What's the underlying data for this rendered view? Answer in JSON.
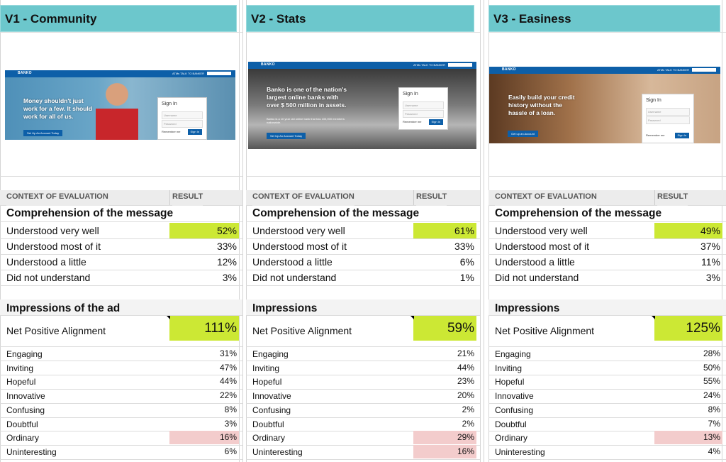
{
  "columns": [
    {
      "header": "V1 - Community",
      "preview": {
        "logo": "BANKO",
        "nav_links": "ATMs  TALK TO BANKER",
        "tagline": [
          "Money shouldn't just",
          "work for a few. It should",
          "work for all of us."
        ],
        "subtext": "",
        "cta": "Set Up An Account Today",
        "signin_title": "Sign In",
        "username_ph": "Username",
        "password_ph": "Password",
        "remember": "Remember me",
        "signin_btn": "Sign In"
      },
      "table_headers": {
        "context": "CONTEXT OF EVALUATION",
        "result": "RESULT"
      },
      "comprehension_title": "Comprehension of the message",
      "comprehension": [
        {
          "label": "Understood very well",
          "value": "52%",
          "highlight": "green"
        },
        {
          "label": "Understood most of it",
          "value": "33%",
          "highlight": ""
        },
        {
          "label": "Understood a little",
          "value": "12%",
          "highlight": ""
        },
        {
          "label": "Did not understand",
          "value": "3%",
          "highlight": ""
        }
      ],
      "impressions_title": "Impressions of the ad",
      "net_label": "Net Positive Alignment",
      "net_value": "111%",
      "impressions": [
        {
          "label": "Engaging",
          "value": "31%",
          "highlight": ""
        },
        {
          "label": "Inviting",
          "value": "47%",
          "highlight": ""
        },
        {
          "label": "Hopeful",
          "value": "44%",
          "highlight": ""
        },
        {
          "label": "Innovative",
          "value": "22%",
          "highlight": ""
        },
        {
          "label": "Confusing",
          "value": "8%",
          "highlight": ""
        },
        {
          "label": "Doubtful",
          "value": "3%",
          "highlight": ""
        },
        {
          "label": "Ordinary",
          "value": "16%",
          "highlight": "pink"
        },
        {
          "label": "Uninteresting",
          "value": "6%",
          "highlight": ""
        }
      ]
    },
    {
      "header": "V2 - Stats",
      "preview": {
        "logo": "BANKO",
        "nav_links": "ATMs  TALK TO BANKER",
        "tagline": [
          "Banko is one of the nation's",
          "largest online banks with",
          "over $ 500 million in assets."
        ],
        "subtext": "Banko is a 10 year old online bank that has 100,000 members nationwide.",
        "cta": "Set Up An Account Today",
        "signin_title": "Sign In",
        "username_ph": "Username",
        "password_ph": "Password",
        "remember": "Remember me",
        "signin_btn": "Sign In"
      },
      "table_headers": {
        "context": "CONTEXT OF EVALUATION",
        "result": "RESULT"
      },
      "comprehension_title": "Comprehension of the message",
      "comprehension": [
        {
          "label": "Understood very well",
          "value": "61%",
          "highlight": "green"
        },
        {
          "label": "Understood most of it",
          "value": "33%",
          "highlight": ""
        },
        {
          "label": "Understood a little",
          "value": "6%",
          "highlight": ""
        },
        {
          "label": "Did not understand",
          "value": "1%",
          "highlight": ""
        }
      ],
      "impressions_title": "Impressions",
      "net_label": "Net Positive Alignment",
      "net_value": "59%",
      "impressions": [
        {
          "label": "Engaging",
          "value": "21%",
          "highlight": ""
        },
        {
          "label": "Inviting",
          "value": "44%",
          "highlight": ""
        },
        {
          "label": "Hopeful",
          "value": "23%",
          "highlight": ""
        },
        {
          "label": "Innovative",
          "value": "20%",
          "highlight": ""
        },
        {
          "label": "Confusing",
          "value": "2%",
          "highlight": ""
        },
        {
          "label": "Doubtful",
          "value": "2%",
          "highlight": ""
        },
        {
          "label": "Ordinary",
          "value": "29%",
          "highlight": "pink"
        },
        {
          "label": "Uninteresting",
          "value": "16%",
          "highlight": "pink"
        }
      ]
    },
    {
      "header": "V3 - Easiness",
      "preview": {
        "logo": "BANKO",
        "nav_links": "ATMs  TALK TO BANKER",
        "tagline": [
          "Easily build your credit",
          "history without the",
          "hassle of a loan."
        ],
        "subtext": "",
        "cta": "Get up an Account",
        "signin_title": "Sign In",
        "username_ph": "Username",
        "password_ph": "Password",
        "remember": "Remember me",
        "signin_btn": "Sign In"
      },
      "table_headers": {
        "context": "CONTEXT OF EVALUATION",
        "result": "RESULT"
      },
      "comprehension_title": "Comprehension of the message",
      "comprehension": [
        {
          "label": "Understood very well",
          "value": "49%",
          "highlight": "green"
        },
        {
          "label": "Understood most of it",
          "value": "37%",
          "highlight": ""
        },
        {
          "label": "Understood a little",
          "value": "11%",
          "highlight": ""
        },
        {
          "label": "Did not understand",
          "value": "3%",
          "highlight": ""
        }
      ],
      "impressions_title": "Impressions",
      "net_label": "Net Positive Alignment",
      "net_value": "125%",
      "impressions": [
        {
          "label": "Engaging",
          "value": "28%",
          "highlight": ""
        },
        {
          "label": "Inviting",
          "value": "50%",
          "highlight": ""
        },
        {
          "label": "Hopeful",
          "value": "55%",
          "highlight": ""
        },
        {
          "label": "Innovative",
          "value": "24%",
          "highlight": ""
        },
        {
          "label": "Confusing",
          "value": "8%",
          "highlight": ""
        },
        {
          "label": "Doubtful",
          "value": "7%",
          "highlight": ""
        },
        {
          "label": "Ordinary",
          "value": "13%",
          "highlight": "pink"
        },
        {
          "label": "Uninteresting",
          "value": "4%",
          "highlight": ""
        }
      ]
    }
  ],
  "colors": {
    "header": "#6cc7cc",
    "green": "#cce834",
    "pink": "#f3cccc",
    "bank_blue": "#0d5fa8"
  }
}
